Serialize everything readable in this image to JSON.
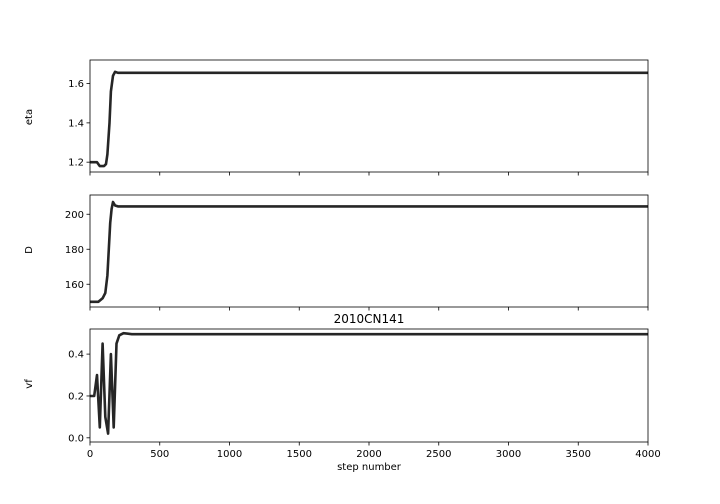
{
  "chart_data": {
    "type": "line",
    "title": "2010CN141",
    "xlabel": "step number",
    "xlim": [
      0,
      4000
    ],
    "xticks": [
      0,
      500,
      1000,
      1500,
      2000,
      2500,
      3000,
      3500,
      4000
    ],
    "grid": false,
    "line_color": "#000000",
    "panels": [
      {
        "name": "eta",
        "ylabel": "eta",
        "ylim": [
          1.15,
          1.72
        ],
        "yticks": [
          1.2,
          1.4,
          1.6
        ],
        "ytick_labels": [
          "1.2",
          "1.4",
          "1.6"
        ],
        "series": [
          {
            "x": [
              0,
              50,
              70,
              100,
              115,
              125,
              140,
              150,
              165,
              180,
              200,
              250,
              300,
              500,
              1000,
              1500,
              2000,
              2500,
              3000,
              3500,
              4000
            ],
            "values": [
              1.2,
              1.2,
              1.18,
              1.18,
              1.19,
              1.24,
              1.4,
              1.56,
              1.64,
              1.66,
              1.655,
              1.655,
              1.655,
              1.655,
              1.655,
              1.655,
              1.655,
              1.655,
              1.655,
              1.655,
              1.655
            ]
          }
        ]
      },
      {
        "name": "D",
        "ylabel": "D",
        "ylim": [
          147,
          211
        ],
        "yticks": [
          160,
          180,
          200
        ],
        "ytick_labels": [
          "160",
          "180",
          "200"
        ],
        "series": [
          {
            "x": [
              0,
              60,
              90,
              110,
              125,
              135,
              145,
              155,
              165,
              180,
              200,
              250,
              500,
              1000,
              1500,
              2000,
              2500,
              3000,
              3500,
              4000
            ],
            "values": [
              150,
              150,
              152,
              155,
              165,
              180,
              195,
              203,
              207,
              205,
              204.5,
              204.5,
              204.5,
              204.5,
              204.5,
              204.5,
              204.5,
              204.5,
              204.5,
              204.5
            ]
          }
        ]
      },
      {
        "name": "vf",
        "ylabel": "vf",
        "ylim": [
          -0.02,
          0.52
        ],
        "yticks": [
          0.0,
          0.2,
          0.4
        ],
        "ytick_labels": [
          "0.0",
          "0.2",
          "0.4"
        ],
        "series": [
          {
            "x": [
              0,
              30,
              50,
              70,
              90,
              110,
              130,
              150,
              170,
              190,
              210,
              240,
              300,
              500,
              1000,
              1500,
              2000,
              2500,
              3000,
              3500,
              4000
            ],
            "values": [
              0.2,
              0.2,
              0.3,
              0.05,
              0.45,
              0.1,
              0.02,
              0.4,
              0.05,
              0.45,
              0.49,
              0.5,
              0.495,
              0.495,
              0.495,
              0.495,
              0.495,
              0.495,
              0.495,
              0.495,
              0.495
            ]
          }
        ]
      }
    ]
  }
}
